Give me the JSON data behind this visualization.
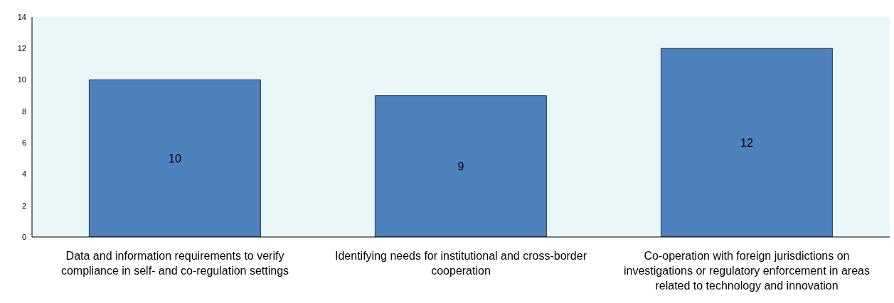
{
  "chart_data": {
    "type": "bar",
    "categories": [
      "Data and information requirements to verify compliance in self- and co-regulation settings",
      "Identifying needs for institutional and cross-border cooperation",
      "Co-operation with foreign jurisdictions on investigations or regulatory enforcement in areas related to technology and innovation"
    ],
    "values": [
      10,
      9,
      12
    ],
    "color": "#4f81bd",
    "ylim": [
      0,
      14
    ],
    "yticks": [
      0,
      2,
      4,
      6,
      8,
      10,
      12,
      14
    ],
    "grid": false,
    "data_labels": true
  }
}
